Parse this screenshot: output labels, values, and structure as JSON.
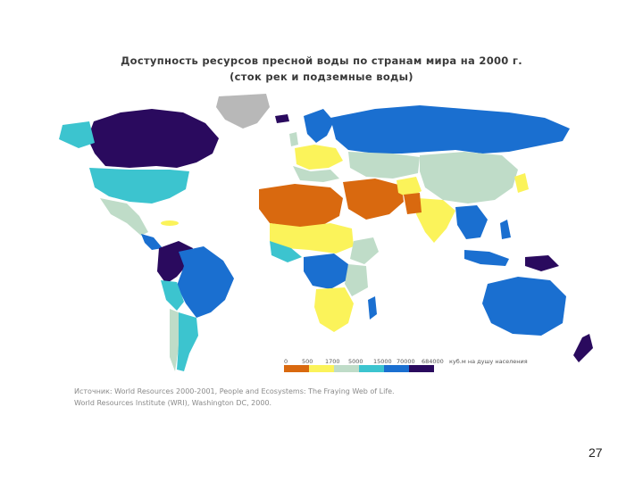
{
  "title_line1": "Доступность ресурсов пресной воды по странам мира на 2000 г.",
  "title_line2": "(сток рек и подземные воды)",
  "legend": {
    "ticks": [
      "0",
      "500",
      "1700",
      "5000",
      "15000",
      "70000",
      "684000"
    ],
    "unit": "куб.м на душу населения",
    "colors": [
      "#d9690f",
      "#fbf35a",
      "#bfdcc8",
      "#3cc4cf",
      "#1a6fd0",
      "#2a0a5e"
    ]
  },
  "map_colors": {
    "no_data": "#b8b8b8",
    "ocean": "#ffffff"
  },
  "source_line1": "Источник: World Resources 2000-2001, People and Ecosystems: The Fraying Web of Life.",
  "source_line2": "World Resources Institute (WRI), Washington DC, 2000.",
  "page_number": "27"
}
